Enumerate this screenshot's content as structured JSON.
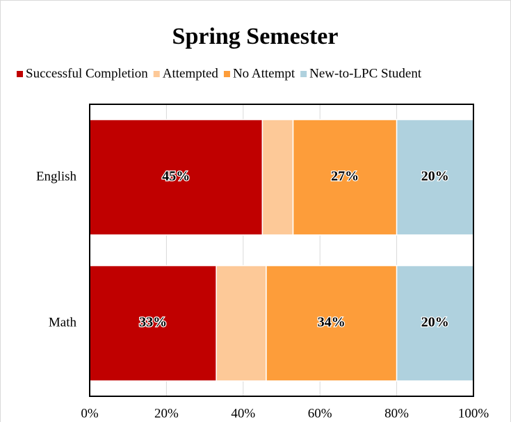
{
  "chart_data": {
    "type": "stacked_bar_horizontal",
    "title": "Spring Semester",
    "categories": [
      "English",
      "Math"
    ],
    "series": [
      {
        "name": "Successful Completion",
        "color": "#c00000",
        "values": [
          45,
          33
        ],
        "value_labels": [
          "45%",
          "33%"
        ]
      },
      {
        "name": "Attempted",
        "color": "#fdc998",
        "values": [
          8,
          13
        ]
      },
      {
        "name": "No Attempt",
        "color": "#fd9d3a",
        "values": [
          27,
          34
        ],
        "value_labels": [
          "27%",
          "34%"
        ]
      },
      {
        "name": "New-to-LPC Student",
        "color": "#afd1de",
        "values": [
          20,
          20
        ],
        "value_labels": [
          "20%",
          "20%"
        ]
      }
    ],
    "xlim": [
      0,
      100
    ],
    "xticks": [
      {
        "value": 0,
        "label": "0%"
      },
      {
        "value": 20,
        "label": "20%"
      },
      {
        "value": 40,
        "label": "40%"
      },
      {
        "value": 60,
        "label": "60%"
      },
      {
        "value": 80,
        "label": "80%"
      },
      {
        "value": 100,
        "label": "100%"
      }
    ],
    "grid": true,
    "legend": "top"
  }
}
